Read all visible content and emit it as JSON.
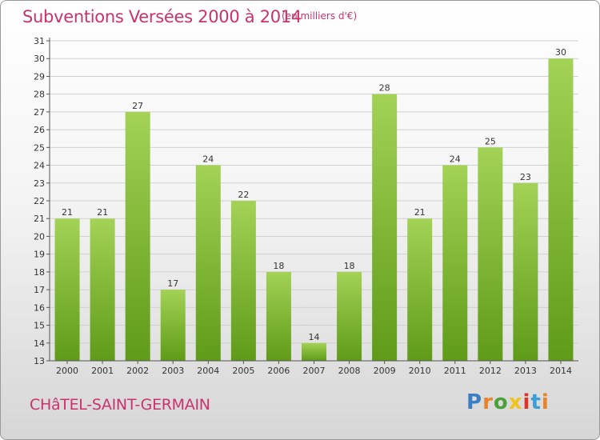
{
  "header": {
    "title": "Subventions Versées 2000 à 2014",
    "subtitle": "(en milliers d'€)"
  },
  "footer": {
    "place": "CHâTEL-SAINT-GERMAIN",
    "logo": "Proxiti",
    "logo_colors": [
      "#3a7fc4",
      "#e8832a",
      "#4aa33a",
      "#f2c21c",
      "#d8342c",
      "#3a9fd8",
      "#e8832a"
    ]
  },
  "colors": {
    "bar_light": "#a3d256",
    "bar_dark": "#5f9b18",
    "grid": "#d0d0d0",
    "title": "#c8336e"
  },
  "chart_data": {
    "type": "bar",
    "title": "Subventions Versées 2000 à 2014",
    "subtitle": "(en milliers d'€)",
    "categories": [
      "2000",
      "2001",
      "2002",
      "2003",
      "2004",
      "2005",
      "2006",
      "2007",
      "2008",
      "2009",
      "2010",
      "2011",
      "2012",
      "2013",
      "2014"
    ],
    "values": [
      21,
      21,
      27,
      17,
      24,
      22,
      18,
      14,
      18,
      28,
      21,
      24,
      25,
      23,
      30
    ],
    "ylim": [
      13,
      31
    ],
    "yticks": [
      13,
      14,
      15,
      16,
      17,
      18,
      19,
      20,
      21,
      22,
      23,
      24,
      25,
      26,
      27,
      28,
      29,
      30,
      31
    ],
    "grid": true,
    "data_labels": true
  }
}
